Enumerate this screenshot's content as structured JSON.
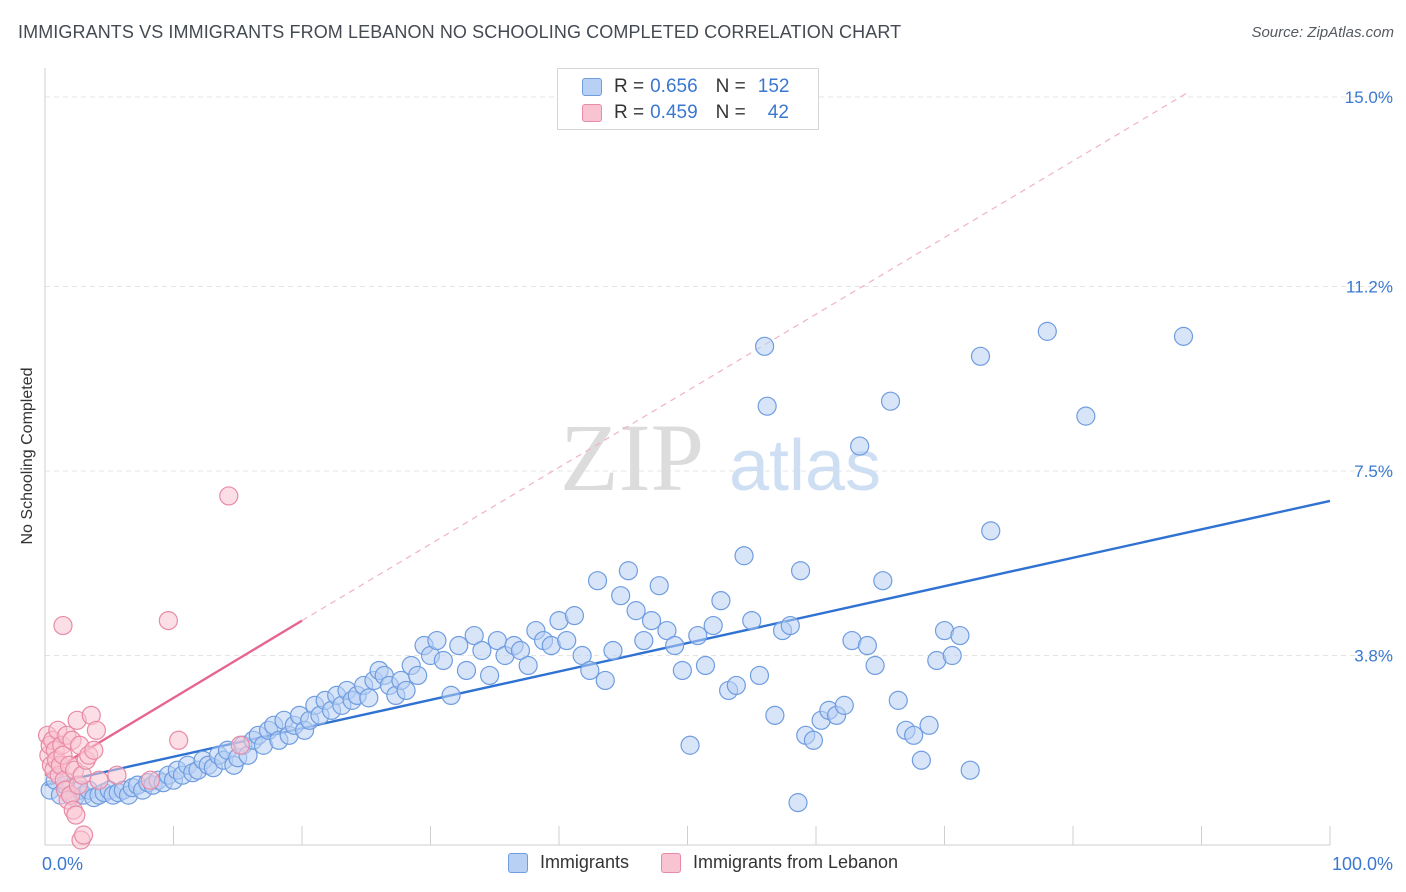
{
  "title": "IMMIGRANTS VS IMMIGRANTS FROM LEBANON NO SCHOOLING COMPLETED CORRELATION CHART",
  "source": "Source: ZipAtlas.com",
  "watermark": {
    "part1": "ZIP",
    "part2": "atlas"
  },
  "legend": {
    "r_label": "R =",
    "n_label": "N =",
    "rows": [
      {
        "r": "0.656",
        "n": "152",
        "fill": "#b8d0f4",
        "stroke": "#6f9de0"
      },
      {
        "r": "0.459",
        "n": "42",
        "fill": "#f9c4d2",
        "stroke": "#e98aa6"
      }
    ]
  },
  "chart_data": {
    "type": "scatter",
    "xlabel": "",
    "ylabel": "No Schooling Completed",
    "xlim": [
      0,
      100
    ],
    "ylim": [
      0,
      15
    ],
    "x_tick_labels": [
      {
        "value": 0,
        "label": "0.0%"
      },
      {
        "value": 100,
        "label": "100.0%"
      }
    ],
    "y_ticks": [
      {
        "value": 3.8,
        "label": "3.8%"
      },
      {
        "value": 7.5,
        "label": "7.5%"
      },
      {
        "value": 11.2,
        "label": "11.2%"
      },
      {
        "value": 15.0,
        "label": "15.0%"
      }
    ],
    "grid": true,
    "series": [
      {
        "name": "Immigrants",
        "color": "#6f9de0",
        "fill": "#b8d0f4",
        "trend": {
          "x": [
            0,
            100
          ],
          "y": [
            1.2,
            6.9
          ],
          "color": "#2f72d2"
        },
        "points": [
          [
            0.4,
            1.1
          ],
          [
            0.8,
            1.3
          ],
          [
            1.2,
            1.0
          ],
          [
            1.6,
            1.2
          ],
          [
            2.0,
            1.0
          ],
          [
            2.3,
            0.95
          ],
          [
            2.7,
            1.1
          ],
          [
            3.0,
            1.0
          ],
          [
            3.4,
            1.1
          ],
          [
            3.8,
            0.95
          ],
          [
            4.2,
            1.0
          ],
          [
            4.6,
            1.05
          ],
          [
            5.0,
            1.1
          ],
          [
            5.3,
            1.0
          ],
          [
            5.7,
            1.05
          ],
          [
            6.1,
            1.1
          ],
          [
            6.5,
            1.0
          ],
          [
            6.8,
            1.15
          ],
          [
            7.2,
            1.2
          ],
          [
            7.6,
            1.1
          ],
          [
            8.0,
            1.25
          ],
          [
            8.4,
            1.2
          ],
          [
            8.8,
            1.3
          ],
          [
            9.2,
            1.25
          ],
          [
            9.6,
            1.4
          ],
          [
            10.0,
            1.3
          ],
          [
            10.3,
            1.5
          ],
          [
            10.7,
            1.4
          ],
          [
            11.1,
            1.6
          ],
          [
            11.5,
            1.45
          ],
          [
            11.9,
            1.5
          ],
          [
            12.3,
            1.7
          ],
          [
            12.7,
            1.6
          ],
          [
            13.1,
            1.55
          ],
          [
            13.5,
            1.8
          ],
          [
            13.9,
            1.7
          ],
          [
            14.2,
            1.9
          ],
          [
            14.7,
            1.6
          ],
          [
            15.0,
            1.75
          ],
          [
            15.4,
            2.0
          ],
          [
            15.8,
            1.8
          ],
          [
            16.2,
            2.1
          ],
          [
            16.6,
            2.2
          ],
          [
            17.0,
            2.0
          ],
          [
            17.4,
            2.3
          ],
          [
            17.8,
            2.4
          ],
          [
            18.2,
            2.1
          ],
          [
            18.6,
            2.5
          ],
          [
            19.0,
            2.2
          ],
          [
            19.4,
            2.4
          ],
          [
            19.8,
            2.6
          ],
          [
            20.2,
            2.3
          ],
          [
            20.6,
            2.5
          ],
          [
            21.0,
            2.8
          ],
          [
            21.4,
            2.6
          ],
          [
            21.8,
            2.9
          ],
          [
            22.3,
            2.7
          ],
          [
            22.7,
            3.0
          ],
          [
            23.1,
            2.8
          ],
          [
            23.5,
            3.1
          ],
          [
            23.9,
            2.9
          ],
          [
            24.3,
            3.0
          ],
          [
            24.8,
            3.2
          ],
          [
            25.2,
            2.95
          ],
          [
            25.6,
            3.3
          ],
          [
            26.0,
            3.5
          ],
          [
            26.4,
            3.4
          ],
          [
            26.8,
            3.2
          ],
          [
            27.3,
            3.0
          ],
          [
            27.7,
            3.3
          ],
          [
            28.1,
            3.1
          ],
          [
            28.5,
            3.6
          ],
          [
            29.0,
            3.4
          ],
          [
            29.5,
            4.0
          ],
          [
            30.0,
            3.8
          ],
          [
            30.5,
            4.1
          ],
          [
            31.0,
            3.7
          ],
          [
            31.6,
            3.0
          ],
          [
            32.2,
            4.0
          ],
          [
            32.8,
            3.5
          ],
          [
            33.4,
            4.2
          ],
          [
            34.0,
            3.9
          ],
          [
            34.6,
            3.4
          ],
          [
            35.2,
            4.1
          ],
          [
            35.8,
            3.8
          ],
          [
            36.5,
            4.0
          ],
          [
            37.0,
            3.9
          ],
          [
            37.6,
            3.6
          ],
          [
            38.2,
            4.3
          ],
          [
            38.8,
            4.1
          ],
          [
            39.4,
            4.0
          ],
          [
            40.0,
            4.5
          ],
          [
            40.6,
            4.1
          ],
          [
            41.2,
            4.6
          ],
          [
            41.8,
            3.8
          ],
          [
            42.4,
            3.5
          ],
          [
            43.0,
            5.3
          ],
          [
            43.6,
            3.3
          ],
          [
            44.2,
            3.9
          ],
          [
            44.8,
            5.0
          ],
          [
            45.4,
            5.5
          ],
          [
            46.0,
            4.7
          ],
          [
            46.6,
            4.1
          ],
          [
            47.2,
            4.5
          ],
          [
            47.8,
            5.2
          ],
          [
            48.4,
            4.3
          ],
          [
            49.0,
            4.0
          ],
          [
            49.6,
            3.5
          ],
          [
            50.2,
            2.0
          ],
          [
            50.8,
            4.2
          ],
          [
            51.4,
            3.6
          ],
          [
            52.0,
            4.4
          ],
          [
            52.6,
            4.9
          ],
          [
            53.2,
            3.1
          ],
          [
            53.8,
            3.2
          ],
          [
            54.4,
            5.8
          ],
          [
            55.0,
            4.5
          ],
          [
            55.6,
            3.4
          ],
          [
            56.2,
            8.8
          ],
          [
            56.8,
            2.6
          ],
          [
            57.4,
            4.3
          ],
          [
            58.0,
            4.4
          ],
          [
            58.6,
            0.85
          ],
          [
            59.2,
            2.2
          ],
          [
            59.8,
            2.1
          ],
          [
            60.4,
            2.5
          ],
          [
            61.0,
            2.7
          ],
          [
            61.6,
            2.6
          ],
          [
            62.2,
            2.8
          ],
          [
            62.8,
            4.1
          ],
          [
            63.4,
            8.0
          ],
          [
            64.0,
            4.0
          ],
          [
            64.6,
            3.6
          ],
          [
            65.2,
            5.3
          ],
          [
            65.8,
            8.9
          ],
          [
            66.4,
            2.9
          ],
          [
            67.0,
            2.3
          ],
          [
            67.6,
            2.2
          ],
          [
            68.2,
            1.7
          ],
          [
            68.8,
            2.4
          ],
          [
            69.4,
            3.7
          ],
          [
            70.0,
            4.3
          ],
          [
            70.6,
            3.8
          ],
          [
            71.2,
            4.2
          ],
          [
            72.0,
            1.5
          ],
          [
            78.0,
            10.3
          ],
          [
            88.6,
            10.2
          ],
          [
            81.0,
            8.6
          ],
          [
            72.8,
            9.8
          ],
          [
            73.6,
            6.3
          ],
          [
            56.0,
            10.0
          ],
          [
            58.8,
            5.5
          ]
        ]
      },
      {
        "name": "Immigrants from Lebanon",
        "color": "#e98aa6",
        "fill": "#f9c4d2",
        "trend": {
          "x": [
            0,
            20
          ],
          "y": [
            1.4,
            4.5
          ],
          "color": "#e6658f",
          "extended": {
            "x": [
              20,
              89
            ],
            "y": [
              4.5,
              15.1
            ]
          }
        },
        "points": [
          [
            0.2,
            2.2
          ],
          [
            0.3,
            1.8
          ],
          [
            0.4,
            2.0
          ],
          [
            0.5,
            1.6
          ],
          [
            0.6,
            2.1
          ],
          [
            0.7,
            1.5
          ],
          [
            0.8,
            1.9
          ],
          [
            0.9,
            1.7
          ],
          [
            1.0,
            2.3
          ],
          [
            1.1,
            1.4
          ],
          [
            1.2,
            1.6
          ],
          [
            1.3,
            2.0
          ],
          [
            1.4,
            1.8
          ],
          [
            1.5,
            1.3
          ],
          [
            1.6,
            1.1
          ],
          [
            1.7,
            2.2
          ],
          [
            1.8,
            0.9
          ],
          [
            1.9,
            1.6
          ],
          [
            2.0,
            1.0
          ],
          [
            2.1,
            2.1
          ],
          [
            2.2,
            0.7
          ],
          [
            2.3,
            1.5
          ],
          [
            2.4,
            0.6
          ],
          [
            2.5,
            2.5
          ],
          [
            2.6,
            1.2
          ],
          [
            2.7,
            2.0
          ],
          [
            2.8,
            0.1
          ],
          [
            2.9,
            1.4
          ],
          [
            3.0,
            0.2
          ],
          [
            3.2,
            1.7
          ],
          [
            3.4,
            1.8
          ],
          [
            3.6,
            2.6
          ],
          [
            3.8,
            1.9
          ],
          [
            4.0,
            2.3
          ],
          [
            4.2,
            1.3
          ],
          [
            1.4,
            4.4
          ],
          [
            9.6,
            4.5
          ],
          [
            14.3,
            7.0
          ],
          [
            10.4,
            2.1
          ],
          [
            15.2,
            2.0
          ],
          [
            5.6,
            1.4
          ],
          [
            8.2,
            1.3
          ]
        ]
      }
    ]
  }
}
